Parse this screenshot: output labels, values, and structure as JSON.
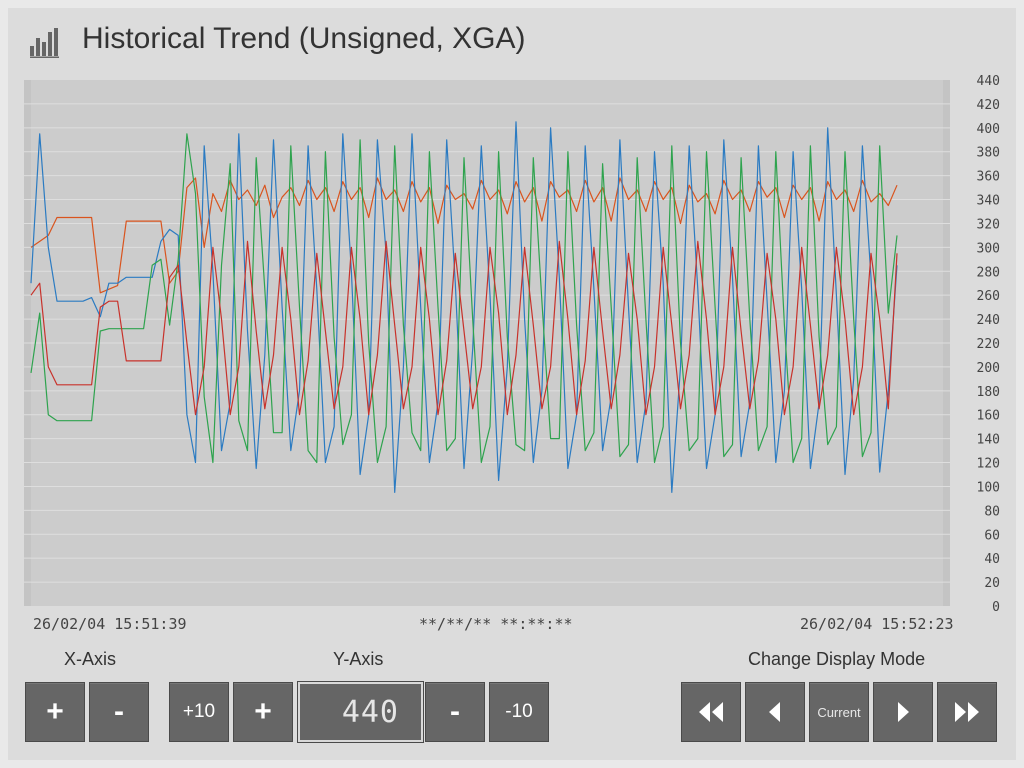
{
  "header": {
    "title": "Historical Trend (Unsigned, XGA)",
    "icon": "bar-chart-icon"
  },
  "chart_data": {
    "type": "line",
    "ylim": [
      0,
      440
    ],
    "y_ticks": [
      "440",
      "420",
      "400",
      "380",
      "360",
      "340",
      "320",
      "300",
      "280",
      "260",
      "240",
      "220",
      "200",
      "180",
      "160",
      "140",
      "120",
      "100",
      "80",
      "60",
      "40",
      "20",
      "0"
    ],
    "grid": true,
    "colors": {
      "orange": "#d9541e",
      "blue": "#2b7bc2",
      "green": "#2ea34e",
      "red": "#c8322b"
    },
    "series": [
      {
        "color": "#d9541e",
        "values": [
          300,
          305,
          310,
          325,
          325,
          325,
          325,
          325,
          262,
          265,
          268,
          322,
          322,
          322,
          322,
          322,
          270,
          280,
          350,
          358,
          300,
          345,
          330,
          356,
          340,
          348,
          335,
          352,
          325,
          342,
          350,
          335,
          356,
          340,
          350,
          330,
          355,
          340,
          350,
          325,
          358,
          340,
          348,
          330,
          355,
          338,
          350,
          320,
          352,
          340,
          345,
          332,
          356,
          340,
          348,
          328,
          355,
          338,
          350,
          322,
          355,
          342,
          348,
          330,
          356,
          338,
          350,
          322,
          358,
          340,
          348,
          330,
          355,
          340,
          350,
          320,
          352,
          338,
          345,
          328,
          356,
          340,
          348,
          330,
          355,
          342,
          350,
          325,
          352,
          340,
          350,
          322,
          355,
          340,
          348,
          330,
          356,
          338,
          345,
          335,
          352
        ]
      },
      {
        "color": "#2b7bc2",
        "values": [
          270,
          395,
          300,
          255,
          255,
          255,
          255,
          258,
          242,
          270,
          270,
          275,
          275,
          275,
          275,
          305,
          315,
          310,
          160,
          120,
          385,
          280,
          130,
          170,
          395,
          230,
          115,
          210,
          390,
          250,
          130,
          180,
          385,
          265,
          120,
          150,
          395,
          280,
          110,
          160,
          390,
          295,
          95,
          200,
          395,
          250,
          120,
          170,
          390,
          270,
          115,
          215,
          385,
          260,
          105,
          200,
          405,
          240,
          120,
          180,
          400,
          275,
          115,
          160,
          385,
          265,
          130,
          175,
          390,
          250,
          120,
          170,
          380,
          270,
          95,
          200,
          385,
          265,
          115,
          160,
          390,
          275,
          125,
          170,
          385,
          255,
          120,
          180,
          380,
          265,
          115,
          170,
          400,
          260,
          110,
          190,
          385,
          275,
          112,
          180,
          285
        ]
      },
      {
        "color": "#2ea34e",
        "values": [
          195,
          245,
          160,
          155,
          155,
          155,
          155,
          155,
          230,
          232,
          232,
          232,
          232,
          232,
          285,
          290,
          235,
          290,
          395,
          345,
          175,
          120,
          285,
          370,
          155,
          130,
          375,
          265,
          145,
          145,
          385,
          250,
          130,
          120,
          380,
          225,
          135,
          160,
          390,
          220,
          120,
          150,
          385,
          235,
          145,
          130,
          380,
          250,
          130,
          140,
          375,
          240,
          120,
          150,
          380,
          225,
          135,
          130,
          375,
          255,
          140,
          140,
          380,
          235,
          130,
          145,
          370,
          250,
          125,
          135,
          375,
          240,
          120,
          150,
          385,
          220,
          130,
          140,
          380,
          250,
          125,
          135,
          375,
          240,
          130,
          150,
          380,
          235,
          120,
          140,
          385,
          225,
          135,
          150,
          380,
          240,
          125,
          145,
          385,
          245,
          310
        ]
      },
      {
        "color": "#c8322b",
        "values": [
          260,
          270,
          200,
          185,
          185,
          185,
          185,
          185,
          250,
          255,
          255,
          205,
          205,
          205,
          205,
          205,
          275,
          285,
          220,
          160,
          200,
          300,
          240,
          160,
          200,
          305,
          230,
          165,
          210,
          300,
          240,
          160,
          205,
          295,
          230,
          165,
          200,
          300,
          240,
          160,
          210,
          305,
          235,
          165,
          200,
          300,
          240,
          160,
          205,
          295,
          230,
          165,
          200,
          300,
          245,
          160,
          210,
          300,
          235,
          165,
          200,
          305,
          240,
          160,
          205,
          300,
          230,
          165,
          210,
          295,
          240,
          160,
          200,
          300,
          235,
          165,
          210,
          305,
          240,
          160,
          200,
          300,
          230,
          165,
          205,
          295,
          240,
          160,
          200,
          300,
          235,
          165,
          210,
          300,
          240,
          160,
          200,
          295,
          240,
          165,
          295
        ]
      }
    ]
  },
  "time": {
    "start": "26/02/04 15:51:39",
    "cursor": "**/**/** **:**:**",
    "end": "26/02/04 15:52:23"
  },
  "controls": {
    "x_axis_label": "X-Axis",
    "y_axis_label": "Y-Axis",
    "display_mode_label": "Change Display Mode",
    "x_plus": "+",
    "x_minus": "-",
    "y_plus10": "+10",
    "y_plus": "+",
    "y_value": "440",
    "y_minus": "-",
    "y_minus10": "-10",
    "current": "Current",
    "nav_icons": [
      "double-left-icon",
      "left-icon",
      "right-icon",
      "double-right-icon"
    ]
  }
}
